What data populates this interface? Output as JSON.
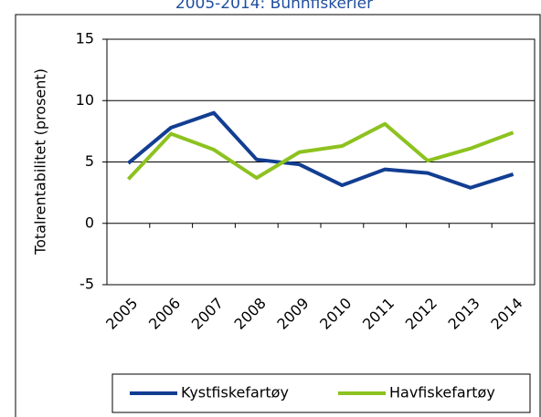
{
  "chart_data": {
    "type": "line",
    "title": "2005-2014: Bunnfiskerier",
    "y_label": "Totalrentabilitet (prosent)",
    "categories": [
      "2005",
      "2006",
      "2007",
      "2008",
      "2009",
      "2010",
      "2011",
      "2012",
      "2013",
      "2014"
    ],
    "series": [
      {
        "name": "Kystfiskefartøy",
        "color": "#123e92",
        "values": [
          4.9,
          7.8,
          9.0,
          5.2,
          4.8,
          3.1,
          4.4,
          4.1,
          2.9,
          4.0
        ]
      },
      {
        "name": "Havfiskefartøy",
        "color": "#8dc21f",
        "values": [
          3.6,
          7.3,
          6.0,
          3.7,
          5.8,
          6.3,
          8.1,
          5.1,
          6.1,
          7.4
        ]
      }
    ],
    "ylim": [
      -5,
      15
    ],
    "yticks": [
      -5,
      0,
      5,
      10,
      15
    ],
    "grid": true,
    "legend": "bottom"
  }
}
